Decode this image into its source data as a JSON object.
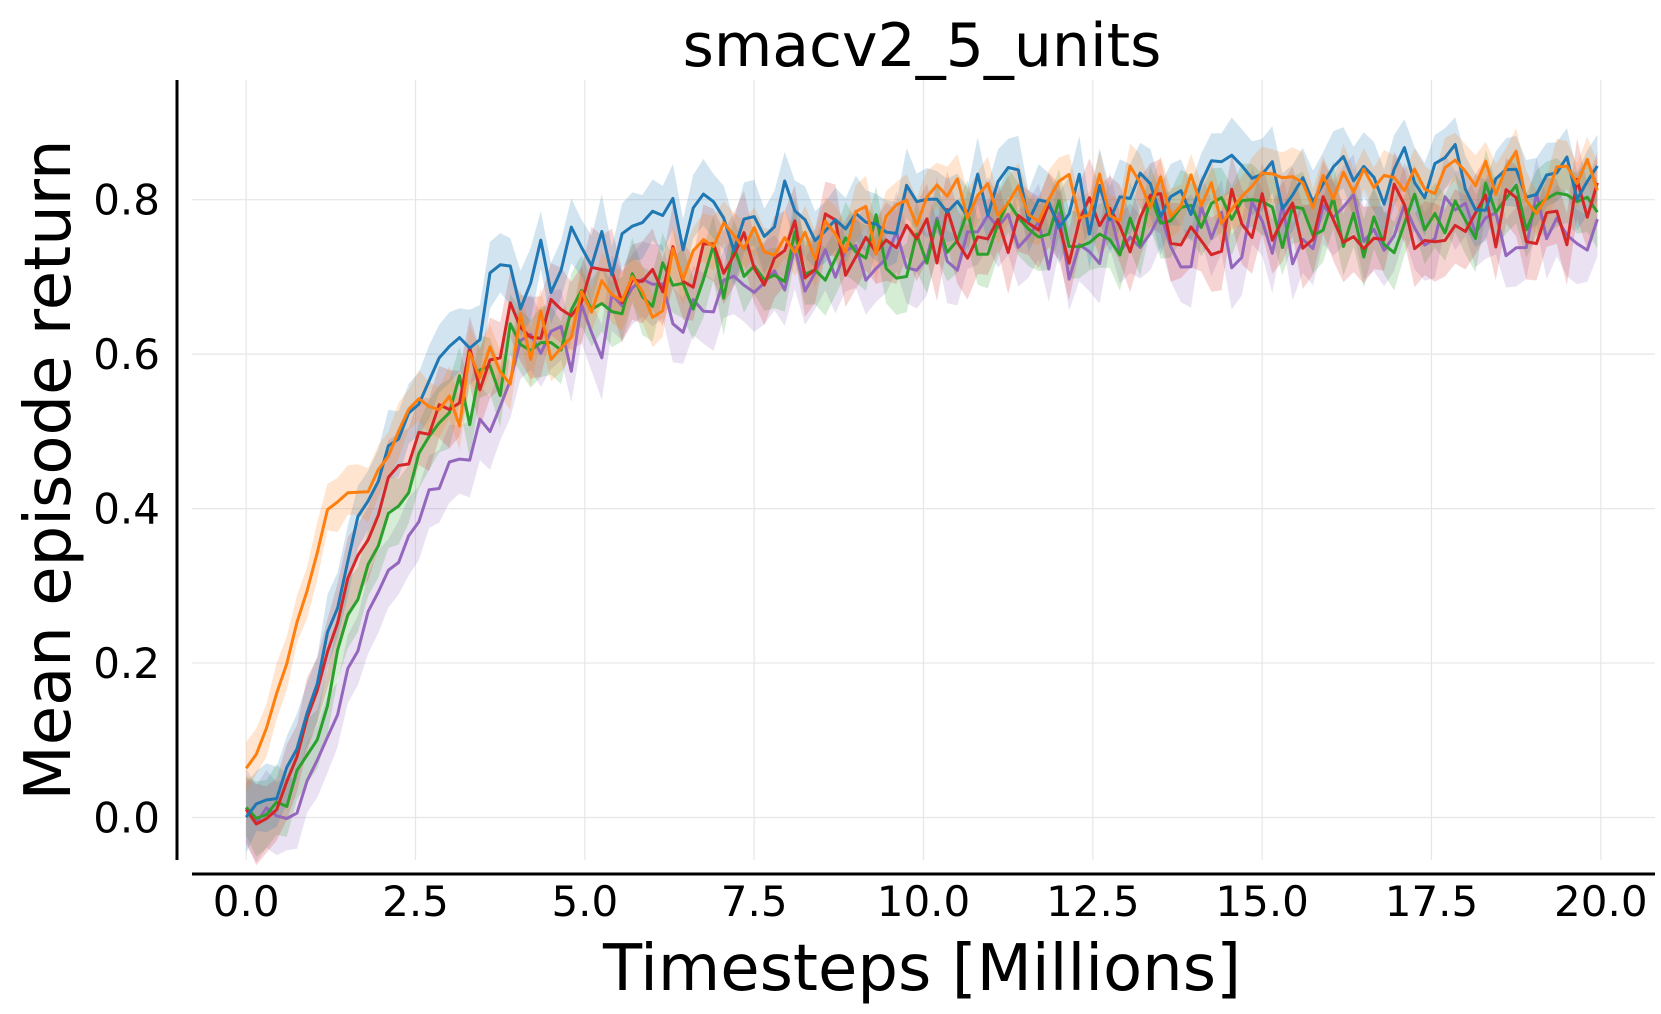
{
  "chart_data": {
    "type": "line",
    "title": "smacv2_5_units",
    "xlabel": "Timesteps [Millions]",
    "ylabel": "Mean episode return",
    "xlim": [
      -0.8,
      20.8
    ],
    "ylim": [
      -0.055,
      0.955
    ],
    "xticks": [
      "0.0",
      "2.5",
      "5.0",
      "7.5",
      "10.0",
      "12.5",
      "15.0",
      "17.5",
      "20.0"
    ],
    "yticks": [
      "0.0",
      "0.2",
      "0.4",
      "0.6",
      "0.8"
    ],
    "grid": true,
    "legend": "none",
    "colors": {
      "blue": "#1f77b4",
      "orange": "#ff7f0e",
      "green": "#2ca02c",
      "red": "#d62728",
      "purple": "#9467bd"
    },
    "series": [
      {
        "color": "#9467bd",
        "band": 0.04,
        "points": [
          [
            0,
            0.0
          ],
          [
            0.25,
            0.0
          ],
          [
            0.5,
            0.0
          ],
          [
            0.75,
            0.02
          ],
          [
            1.0,
            0.05
          ],
          [
            1.25,
            0.1
          ],
          [
            1.5,
            0.18
          ],
          [
            1.75,
            0.24
          ],
          [
            2.0,
            0.3
          ],
          [
            2.25,
            0.34
          ],
          [
            2.5,
            0.38
          ],
          [
            2.75,
            0.42
          ],
          [
            3.0,
            0.46
          ],
          [
            3.5,
            0.52
          ],
          [
            4.0,
            0.58
          ],
          [
            4.5,
            0.61
          ],
          [
            5.0,
            0.63
          ],
          [
            5.5,
            0.64
          ],
          [
            6.0,
            0.66
          ],
          [
            6.5,
            0.67
          ],
          [
            7.0,
            0.68
          ],
          [
            7.5,
            0.69
          ],
          [
            8.0,
            0.7
          ],
          [
            8.5,
            0.7
          ],
          [
            9.0,
            0.72
          ],
          [
            9.5,
            0.72
          ],
          [
            10.0,
            0.73
          ],
          [
            11.0,
            0.74
          ],
          [
            12.0,
            0.74
          ],
          [
            13.0,
            0.75
          ],
          [
            14.0,
            0.75
          ],
          [
            15.0,
            0.76
          ],
          [
            16.0,
            0.76
          ],
          [
            17.0,
            0.77
          ],
          [
            18.0,
            0.77
          ],
          [
            19.0,
            0.77
          ],
          [
            20.0,
            0.78
          ]
        ]
      },
      {
        "color": "#2ca02c",
        "band": 0.035,
        "points": [
          [
            0,
            0.0
          ],
          [
            0.25,
            0.0
          ],
          [
            0.5,
            0.01
          ],
          [
            0.75,
            0.05
          ],
          [
            1.0,
            0.1
          ],
          [
            1.25,
            0.17
          ],
          [
            1.5,
            0.25
          ],
          [
            1.75,
            0.31
          ],
          [
            2.0,
            0.37
          ],
          [
            2.25,
            0.41
          ],
          [
            2.5,
            0.45
          ],
          [
            2.75,
            0.49
          ],
          [
            3.0,
            0.52
          ],
          [
            3.5,
            0.57
          ],
          [
            4.0,
            0.61
          ],
          [
            4.5,
            0.63
          ],
          [
            5.0,
            0.65
          ],
          [
            5.5,
            0.67
          ],
          [
            6.0,
            0.69
          ],
          [
            6.5,
            0.7
          ],
          [
            7.0,
            0.71
          ],
          [
            7.5,
            0.72
          ],
          [
            8.0,
            0.72
          ],
          [
            8.5,
            0.73
          ],
          [
            9.0,
            0.74
          ],
          [
            9.5,
            0.74
          ],
          [
            10.0,
            0.75
          ],
          [
            11.0,
            0.75
          ],
          [
            12.0,
            0.76
          ],
          [
            13.0,
            0.76
          ],
          [
            14.0,
            0.77
          ],
          [
            15.0,
            0.77
          ],
          [
            16.0,
            0.77
          ],
          [
            17.0,
            0.77
          ],
          [
            18.0,
            0.78
          ],
          [
            19.0,
            0.78
          ],
          [
            20.0,
            0.76
          ]
        ]
      },
      {
        "color": "#d62728",
        "band": 0.04,
        "points": [
          [
            0,
            0.0
          ],
          [
            0.25,
            0.0
          ],
          [
            0.5,
            0.02
          ],
          [
            0.75,
            0.08
          ],
          [
            1.0,
            0.15
          ],
          [
            1.25,
            0.22
          ],
          [
            1.5,
            0.3
          ],
          [
            1.75,
            0.36
          ],
          [
            2.0,
            0.41
          ],
          [
            2.25,
            0.45
          ],
          [
            2.5,
            0.48
          ],
          [
            2.75,
            0.51
          ],
          [
            3.0,
            0.54
          ],
          [
            3.5,
            0.6
          ],
          [
            4.0,
            0.63
          ],
          [
            4.5,
            0.65
          ],
          [
            5.0,
            0.67
          ],
          [
            5.5,
            0.69
          ],
          [
            6.0,
            0.7
          ],
          [
            6.5,
            0.71
          ],
          [
            7.0,
            0.72
          ],
          [
            7.5,
            0.72
          ],
          [
            8.0,
            0.73
          ],
          [
            8.5,
            0.74
          ],
          [
            9.0,
            0.74
          ],
          [
            9.5,
            0.75
          ],
          [
            10.0,
            0.75
          ],
          [
            11.0,
            0.75
          ],
          [
            12.0,
            0.76
          ],
          [
            13.0,
            0.76
          ],
          [
            14.0,
            0.77
          ],
          [
            15.0,
            0.77
          ],
          [
            16.0,
            0.77
          ],
          [
            17.0,
            0.78
          ],
          [
            18.0,
            0.78
          ],
          [
            19.0,
            0.78
          ],
          [
            20.0,
            0.79
          ]
        ]
      },
      {
        "color": "#1f77b4",
        "band": 0.035,
        "points": [
          [
            0,
            0.01
          ],
          [
            0.25,
            0.01
          ],
          [
            0.5,
            0.04
          ],
          [
            0.75,
            0.1
          ],
          [
            1.0,
            0.17
          ],
          [
            1.25,
            0.25
          ],
          [
            1.5,
            0.34
          ],
          [
            1.75,
            0.4
          ],
          [
            2.0,
            0.45
          ],
          [
            2.25,
            0.5
          ],
          [
            2.5,
            0.53
          ],
          [
            2.75,
            0.57
          ],
          [
            3.0,
            0.6
          ],
          [
            3.5,
            0.66
          ],
          [
            4.0,
            0.69
          ],
          [
            4.5,
            0.71
          ],
          [
            5.0,
            0.73
          ],
          [
            5.5,
            0.75
          ],
          [
            6.0,
            0.76
          ],
          [
            6.5,
            0.77
          ],
          [
            7.0,
            0.77
          ],
          [
            7.5,
            0.78
          ],
          [
            8.0,
            0.78
          ],
          [
            8.5,
            0.78
          ],
          [
            9.0,
            0.79
          ],
          [
            9.5,
            0.79
          ],
          [
            10.0,
            0.8
          ],
          [
            11.0,
            0.8
          ],
          [
            12.0,
            0.8
          ],
          [
            13.0,
            0.8
          ],
          [
            14.0,
            0.81
          ],
          [
            15.0,
            0.82
          ],
          [
            16.0,
            0.83
          ],
          [
            17.0,
            0.83
          ],
          [
            18.0,
            0.83
          ],
          [
            19.0,
            0.83
          ],
          [
            20.0,
            0.84
          ]
        ]
      },
      {
        "color": "#ff7f0e",
        "band": 0.025,
        "points": [
          [
            0,
            0.05
          ],
          [
            0.25,
            0.1
          ],
          [
            0.5,
            0.17
          ],
          [
            0.75,
            0.25
          ],
          [
            1.0,
            0.33
          ],
          [
            1.25,
            0.41
          ],
          [
            1.5,
            0.43
          ],
          [
            1.75,
            0.43
          ],
          [
            2.0,
            0.46
          ],
          [
            2.25,
            0.5
          ],
          [
            2.5,
            0.53
          ],
          [
            2.75,
            0.53
          ],
          [
            3.0,
            0.54
          ],
          [
            3.5,
            0.58
          ],
          [
            4.0,
            0.61
          ],
          [
            4.5,
            0.63
          ],
          [
            5.0,
            0.64
          ],
          [
            5.5,
            0.67
          ],
          [
            6.0,
            0.69
          ],
          [
            6.5,
            0.71
          ],
          [
            7.0,
            0.73
          ],
          [
            7.5,
            0.74
          ],
          [
            8.0,
            0.75
          ],
          [
            8.5,
            0.76
          ],
          [
            9.0,
            0.77
          ],
          [
            9.5,
            0.77
          ],
          [
            10.0,
            0.78
          ],
          [
            11.0,
            0.8
          ],
          [
            12.0,
            0.8
          ],
          [
            13.0,
            0.8
          ],
          [
            14.0,
            0.8
          ],
          [
            15.0,
            0.81
          ],
          [
            16.0,
            0.82
          ],
          [
            17.0,
            0.82
          ],
          [
            18.0,
            0.82
          ],
          [
            19.0,
            0.82
          ],
          [
            20.0,
            0.85
          ]
        ]
      }
    ]
  }
}
